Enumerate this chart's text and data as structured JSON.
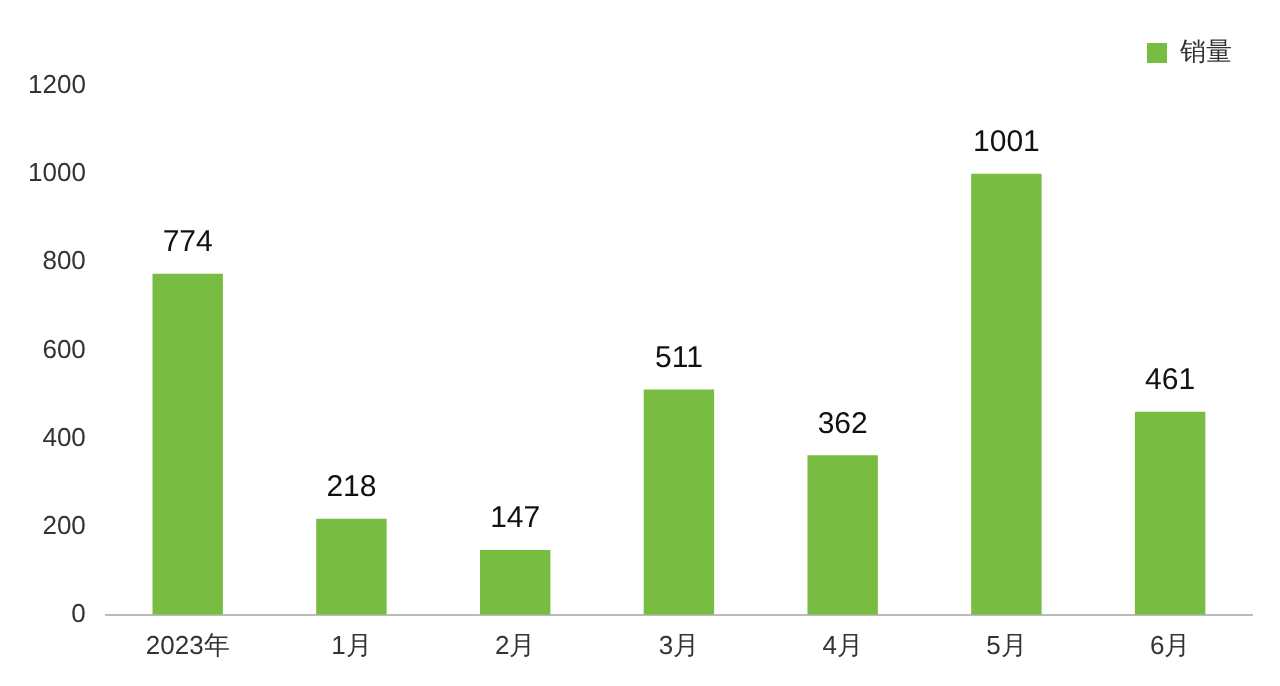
{
  "chart_data": {
    "type": "bar",
    "categories": [
      "2023年",
      "1月",
      "2月",
      "3月",
      "4月",
      "5月",
      "6月"
    ],
    "series": [
      {
        "name": "销量",
        "color": "#78bc42",
        "values": [
          774,
          218,
          147,
          511,
          362,
          1001,
          461
        ]
      }
    ],
    "ylim": [
      0,
      1200
    ],
    "yticks": [
      0,
      200,
      400,
      600,
      800,
      1000,
      1200
    ],
    "grid": false,
    "legend": "top right",
    "data_labels": true
  }
}
